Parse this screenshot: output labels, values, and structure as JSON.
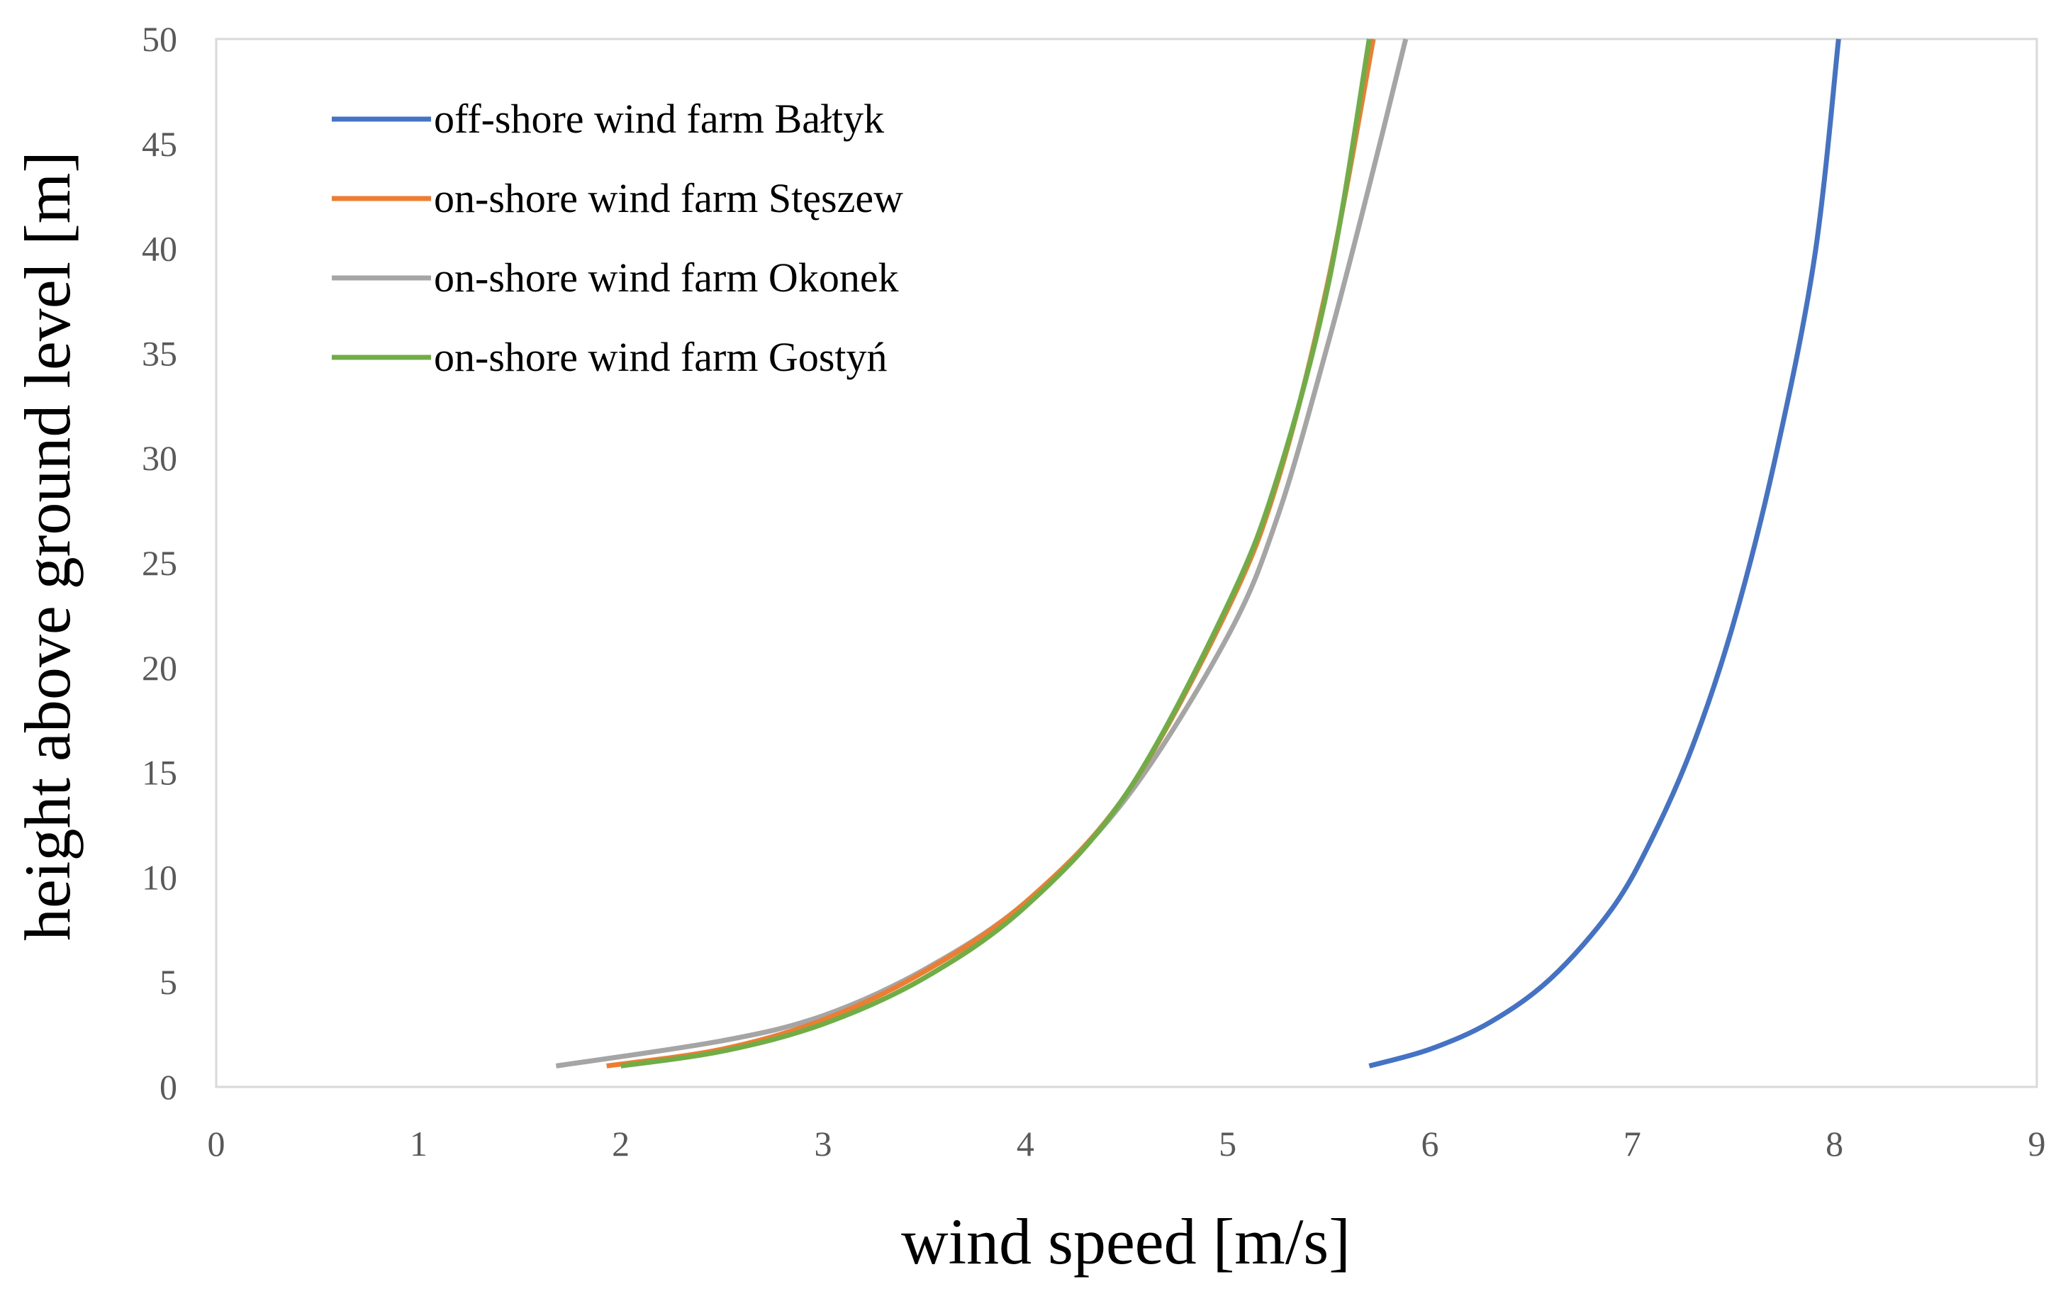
{
  "chart_data": {
    "type": "line",
    "xlabel": "wind speed [m/s]",
    "ylabel": "height above ground level [m]",
    "xlim": [
      0,
      9
    ],
    "ylim": [
      0,
      50
    ],
    "x_ticks": [
      0,
      1,
      2,
      3,
      4,
      5,
      6,
      7,
      8,
      9
    ],
    "y_ticks": [
      0,
      5,
      10,
      15,
      20,
      25,
      30,
      35,
      40,
      45,
      50
    ],
    "grid": "plot-area border only",
    "legend_position": "top-left",
    "series": [
      {
        "name": "off-shore wind farm Bałtyk",
        "color": "#4472c4",
        "points": [
          [
            5.7,
            1
          ],
          [
            6.0,
            1.8
          ],
          [
            6.3,
            3.1
          ],
          [
            6.6,
            5.2
          ],
          [
            6.9,
            8.5
          ],
          [
            7.1,
            11.9
          ],
          [
            7.3,
            16.3
          ],
          [
            7.5,
            22.1
          ],
          [
            7.7,
            29.7
          ],
          [
            7.9,
            39.5
          ],
          [
            8.02,
            50
          ]
        ]
      },
      {
        "name": "on-shore wind farm Stęszew",
        "color": "#ed7d31",
        "points": [
          [
            1.93,
            1
          ],
          [
            2.5,
            1.8
          ],
          [
            3.0,
            3.2
          ],
          [
            3.5,
            5.5
          ],
          [
            4.0,
            8.8
          ],
          [
            4.5,
            14.0
          ],
          [
            5.0,
            22.8
          ],
          [
            5.25,
            29.0
          ],
          [
            5.5,
            38.6
          ],
          [
            5.72,
            50
          ]
        ]
      },
      {
        "name": "on-shore wind farm Okonek",
        "color": "#a5a5a5",
        "points": [
          [
            1.68,
            1
          ],
          [
            2.5,
            2.2
          ],
          [
            3.0,
            3.4
          ],
          [
            3.5,
            5.6
          ],
          [
            4.0,
            8.8
          ],
          [
            4.5,
            13.8
          ],
          [
            5.0,
            21.5
          ],
          [
            5.25,
            27.3
          ],
          [
            5.5,
            35.6
          ],
          [
            5.7,
            43.0
          ],
          [
            5.88,
            50
          ]
        ]
      },
      {
        "name": "on-shore wind farm Gostyń",
        "color": "#70ad47",
        "points": [
          [
            2.0,
            1
          ],
          [
            2.5,
            1.7
          ],
          [
            3.0,
            3.0
          ],
          [
            3.5,
            5.2
          ],
          [
            4.0,
            8.6
          ],
          [
            4.5,
            14.0
          ],
          [
            5.0,
            23.0
          ],
          [
            5.25,
            29.2
          ],
          [
            5.5,
            38.4
          ],
          [
            5.7,
            50
          ]
        ]
      }
    ]
  }
}
